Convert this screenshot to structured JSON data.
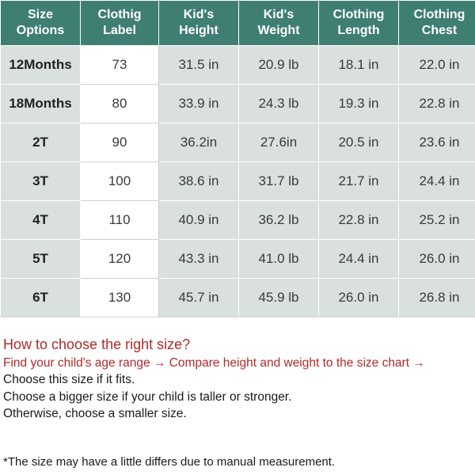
{
  "table": {
    "headers": [
      "Size\nOptions",
      "Clothig\nLabel",
      "Kid's\nHeight",
      "Kid's\nWeight",
      "Clothing\nLength",
      "Clothing\nChest"
    ],
    "rows": [
      [
        "12Months",
        "73",
        "31.5 in",
        "20.9 lb",
        "18.1 in",
        "22.0 in"
      ],
      [
        "18Months",
        "80",
        "33.9 in",
        "24.3 lb",
        "19.3 in",
        "22.8 in"
      ],
      [
        "2T",
        "90",
        "36.2in",
        "27.6in",
        "20.5 in",
        "23.6 in"
      ],
      [
        "3T",
        "100",
        "38.6 in",
        "31.7 lb",
        "21.7 in",
        "24.4 in"
      ],
      [
        "4T",
        "110",
        "40.9 in",
        "36.2 lb",
        "22.8 in",
        "25.2 in"
      ],
      [
        "5T",
        "120",
        "43.3 in",
        "41.0 lb",
        "24.4 in",
        "26.0 in"
      ],
      [
        "6T",
        "130",
        "45.7 in",
        "45.9 lb",
        "26.0 in",
        "26.8 in"
      ]
    ]
  },
  "guide": {
    "title": "How to choose the right size?",
    "steps": "Find your child's age range → Compare height and weight to the size chart →",
    "lines": [
      "Choose this size if it fits.",
      "Choose a bigger size if your child is taller or stronger.",
      "Otherwise, choose a smaller size."
    ]
  },
  "footnote": "*The size  may have a little differs due to manual measurement.",
  "colors": {
    "header_bg": "#3f7e73",
    "cell_bg": "#dadfe0",
    "label_bg": "#ffffff",
    "guide_red": "#b22a2a"
  }
}
